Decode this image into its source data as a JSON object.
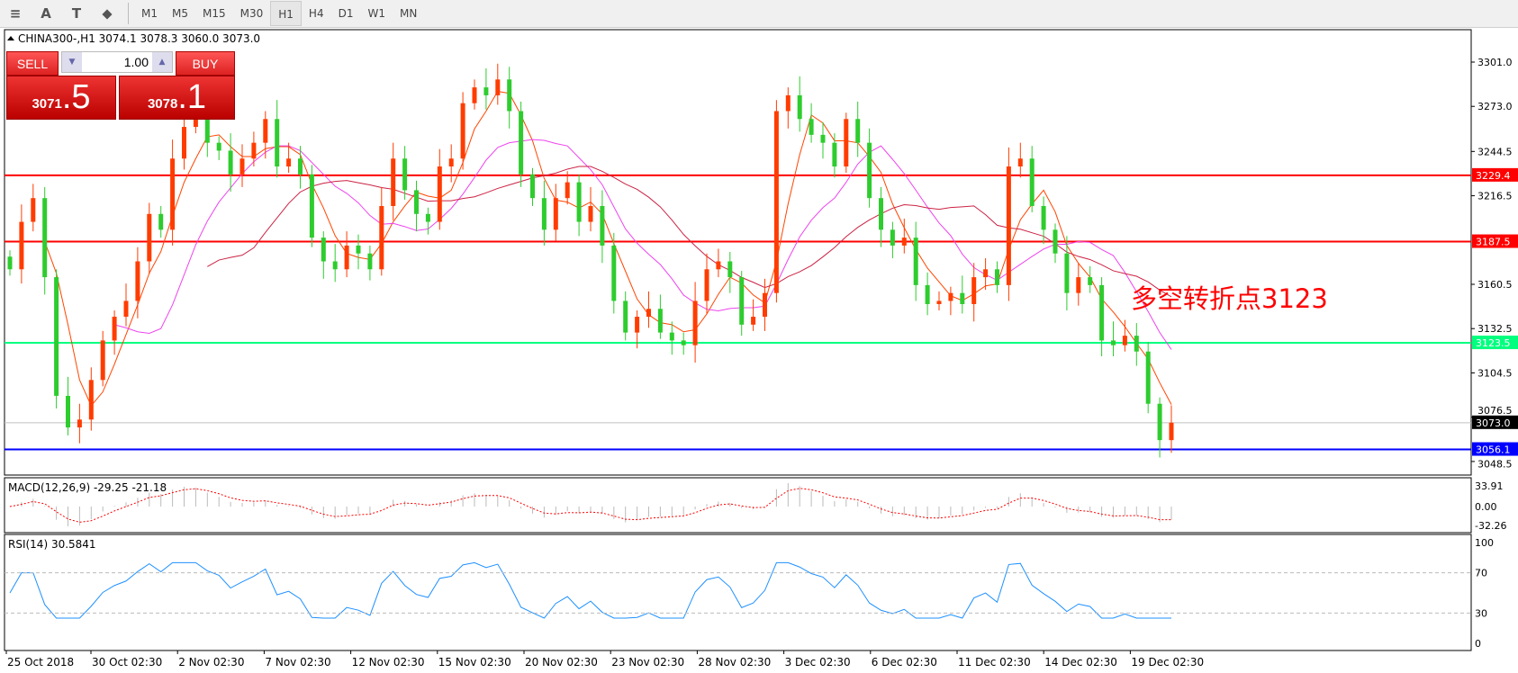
{
  "toolbar": {
    "icons": [
      "fibo-icon",
      "text-a-icon",
      "text-label-icon",
      "arrows-icon"
    ],
    "icon_labels": [
      "≡",
      "A",
      "T",
      "⬥"
    ],
    "timeframes": [
      "M1",
      "M5",
      "M15",
      "M30",
      "H1",
      "H4",
      "D1",
      "W1",
      "MN"
    ],
    "active": "H1"
  },
  "header": {
    "symbol_line": "CHINA300-,H1  3074.1 3078.3 3060.0 3073.0"
  },
  "trade": {
    "sell": "SELL",
    "buy": "BUY",
    "lot": "1.00",
    "sell_small": "3071",
    "sell_big": ".5",
    "buy_small": "3078",
    "buy_big": ".1"
  },
  "price_axis": {
    "ticks": [
      "3301.0",
      "3273.0",
      "3244.5",
      "3216.5",
      "3160.5",
      "3132.5",
      "3104.5",
      "3076.5",
      "3048.5"
    ]
  },
  "levels": [
    {
      "label": "3229.4",
      "value": 3229.4,
      "color": "#ff0000"
    },
    {
      "label": "3187.5",
      "value": 3187.5,
      "color": "#ff0000"
    },
    {
      "label": "3123.5",
      "value": 3123.5,
      "color": "#00ff7f"
    },
    {
      "label": "3073.0",
      "value": 3073.0,
      "color": "#c0c0c0",
      "tag": "#000000"
    },
    {
      "label": "3056.1",
      "value": 3056.1,
      "color": "#0000ff"
    }
  ],
  "annotation": "多空转折点3123",
  "macd": {
    "label": "MACD(12,26,9) -29.25 -21.18",
    "ticks": [
      "33.91",
      "0.00",
      "-32.26"
    ]
  },
  "rsi": {
    "label": "RSI(14) 30.5841",
    "ticks": [
      "100",
      "70",
      "30",
      "0"
    ]
  },
  "time_axis": [
    "25 Oct 2018",
    "30 Oct 02:30",
    "2 Nov 02:30",
    "7 Nov 02:30",
    "12 Nov 02:30",
    "15 Nov 02:30",
    "20 Nov 02:30",
    "23 Nov 02:30",
    "28 Nov 02:30",
    "3 Dec 02:30",
    "6 Dec 02:30",
    "11 Dec 02:30",
    "14 Dec 02:30",
    "19 Dec 02:30"
  ],
  "colors": {
    "up": "#ff3c00",
    "down": "#2ecc2e",
    "ma_fast": "#ff4500",
    "ma_mid": "#ee44ee",
    "ma_slow": "#cc2244",
    "rsi": "#1e90ff",
    "macd_signal": "#ff0000"
  },
  "chart_data": {
    "type": "candlestick",
    "closes": [
      3170,
      3200,
      3215,
      3165,
      3090,
      3070,
      3075,
      3100,
      3125,
      3140,
      3150,
      3175,
      3205,
      3195,
      3240,
      3260,
      3265,
      3250,
      3245,
      3230,
      3240,
      3250,
      3265,
      3235,
      3240,
      3230,
      3190,
      3175,
      3170,
      3185,
      3180,
      3170,
      3210,
      3240,
      3220,
      3205,
      3200,
      3235,
      3240,
      3275,
      3285,
      3280,
      3290,
      3270,
      3230,
      3215,
      3195,
      3215,
      3225,
      3200,
      3210,
      3185,
      3150,
      3130,
      3140,
      3145,
      3130,
      3125,
      3122,
      3150,
      3170,
      3175,
      3165,
      3135,
      3140,
      3155,
      3270,
      3280,
      3265,
      3255,
      3250,
      3235,
      3265,
      3250,
      3215,
      3195,
      3185,
      3190,
      3160,
      3148,
      3150,
      3155,
      3148,
      3165,
      3170,
      3160,
      3235,
      3240,
      3210,
      3195,
      3180,
      3155,
      3165,
      3160,
      3125,
      3122,
      3128,
      3118,
      3085,
      3062,
      3073
    ],
    "ylim": [
      3040,
      3315
    ]
  }
}
